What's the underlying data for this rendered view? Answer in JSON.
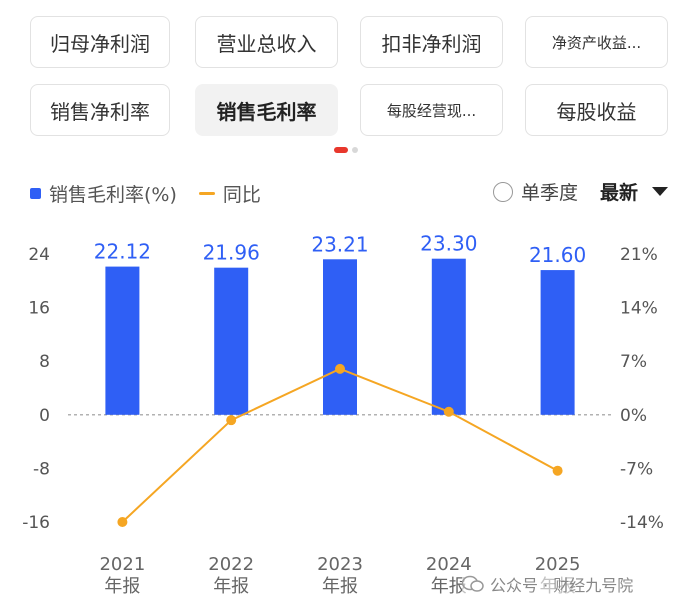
{
  "tabs": [
    {
      "label": "归母净利润",
      "active": false,
      "small": false
    },
    {
      "label": "营业总收入",
      "active": false,
      "small": false
    },
    {
      "label": "扣非净利润",
      "active": false,
      "small": false
    },
    {
      "label": "净资产收益...",
      "active": false,
      "small": true
    },
    {
      "label": "销售净利率",
      "active": false,
      "small": false
    },
    {
      "label": "销售毛利率",
      "active": true,
      "small": false
    },
    {
      "label": "每股经营现...",
      "active": false,
      "small": true
    },
    {
      "label": "每股收益",
      "active": false,
      "small": false
    }
  ],
  "legend": {
    "bar_label": "销售毛利率(%)",
    "line_label": "同比"
  },
  "controls": {
    "single_quarter": "单季度",
    "sort": "最新"
  },
  "watermark": "公众号 · 财经九号院",
  "colors": {
    "bar": "#2f5ff5",
    "line": "#f5a623",
    "active_dot": "#e8372c"
  },
  "chart_data": {
    "type": "bar",
    "categories": [
      "2021\n年报",
      "2022\n年报",
      "2023\n年报",
      "2024\n年报",
      "2025\n年报"
    ],
    "category_years": [
      "2021",
      "2022",
      "2023",
      "2024",
      "2025"
    ],
    "category_suffix": "年报",
    "series": [
      {
        "name": "销售毛利率(%)",
        "type": "bar",
        "axis": "left",
        "values": [
          22.12,
          21.96,
          23.21,
          23.3,
          21.6
        ],
        "labels": [
          "22.12",
          "21.96",
          "23.21",
          "23.30",
          "21.60"
        ]
      },
      {
        "name": "同比",
        "type": "line",
        "axis": "right",
        "values": [
          -14.0,
          -0.7,
          6.0,
          0.4,
          -7.3
        ]
      }
    ],
    "left_axis": {
      "ticks": [
        24,
        16,
        8,
        0,
        -8,
        -16
      ],
      "tick_labels": [
        "24",
        "16",
        "8",
        "0",
        "-8",
        "-16"
      ],
      "range": [
        -16,
        24
      ]
    },
    "right_axis": {
      "ticks": [
        21,
        14,
        7,
        0,
        -7,
        -14
      ],
      "tick_labels": [
        "21%",
        "14%",
        "7%",
        "0%",
        "-7%",
        "-14%"
      ],
      "range": [
        -14,
        21
      ]
    },
    "zero_line": "dashed",
    "grid": false
  }
}
